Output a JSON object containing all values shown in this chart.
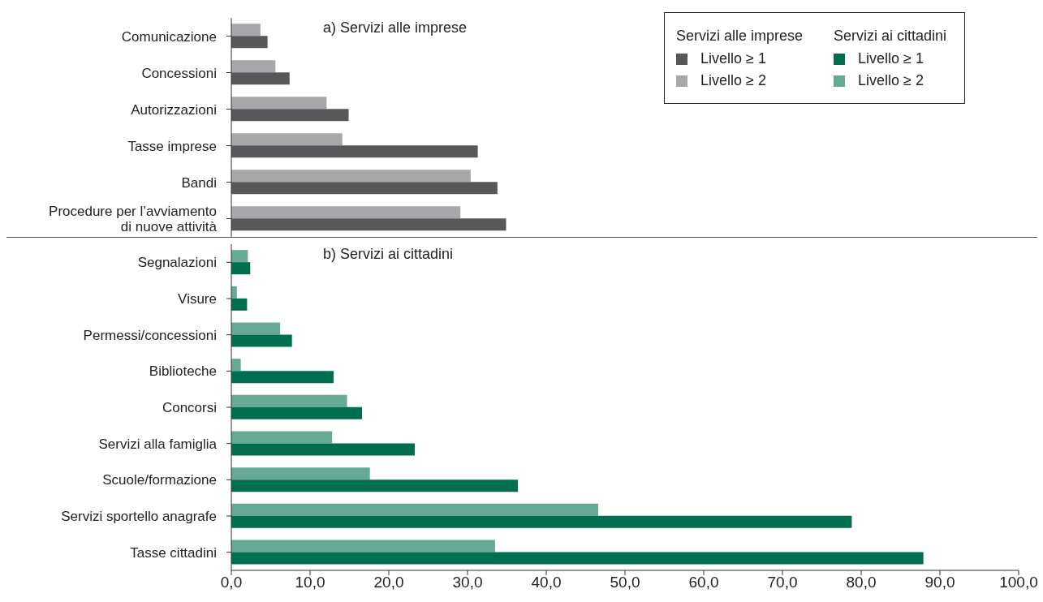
{
  "chart_data": [
    {
      "type": "bar",
      "orientation": "horizontal",
      "title": "a) Servizi alle imprese",
      "legend_title": "Servizi alle imprese",
      "legend": "top right",
      "grid": false,
      "tick_labels": "y",
      "categories": [
        "Comunicazione",
        "Concessioni",
        "Autorizzazioni",
        "Tasse imprese",
        "Bandi",
        "Procedure per l’avviamento di nuove attività"
      ],
      "xlim": [
        0,
        100
      ],
      "series": [
        {
          "name": "Livello ≥ 1",
          "color": "#58585a",
          "values": [
            4.6,
            7.4,
            14.9,
            31.3,
            33.8,
            34.9
          ]
        },
        {
          "name": "Livello ≥ 2",
          "color": "#a7a7a9",
          "values": [
            3.7,
            5.6,
            12.1,
            14.1,
            30.4,
            29.1
          ]
        }
      ]
    },
    {
      "type": "bar",
      "orientation": "horizontal",
      "title": "b) Servizi ai cittadini",
      "legend_title": "Servizi ai cittadini",
      "legend": "top right",
      "grid": false,
      "categories": [
        "Segnalazioni",
        "Visure",
        "Permessi/concessioni",
        "Biblioteche",
        "Concorsi",
        "Servizi alla famiglia",
        "Scuole/formazione",
        "Servizi sportello anagrafe",
        "Tasse cittadini"
      ],
      "xlim": [
        0,
        100
      ],
      "xticks": [
        {
          "value": 0,
          "label": "0,0"
        },
        {
          "value": 10,
          "label": "10,0"
        },
        {
          "value": 20,
          "label": "20,0"
        },
        {
          "value": 30,
          "label": "30,0"
        },
        {
          "value": 40,
          "label": "40,0"
        },
        {
          "value": 50,
          "label": "50,0"
        },
        {
          "value": 60,
          "label": "60,0"
        },
        {
          "value": 70,
          "label": "70,0"
        },
        {
          "value": 80,
          "label": "80,0"
        },
        {
          "value": 90,
          "label": "90,0"
        },
        {
          "value": 100,
          "label": "100,0"
        }
      ],
      "series": [
        {
          "name": "Livello ≥ 1",
          "color": "#006f4f",
          "values": [
            2.4,
            2.0,
            7.7,
            13.0,
            16.6,
            23.3,
            36.4,
            78.8,
            87.9
          ]
        },
        {
          "name": "Livello ≥ 2",
          "color": "#66a994",
          "values": [
            2.1,
            0.7,
            6.2,
            1.2,
            14.7,
            12.8,
            17.6,
            46.6,
            33.5
          ]
        }
      ]
    }
  ]
}
